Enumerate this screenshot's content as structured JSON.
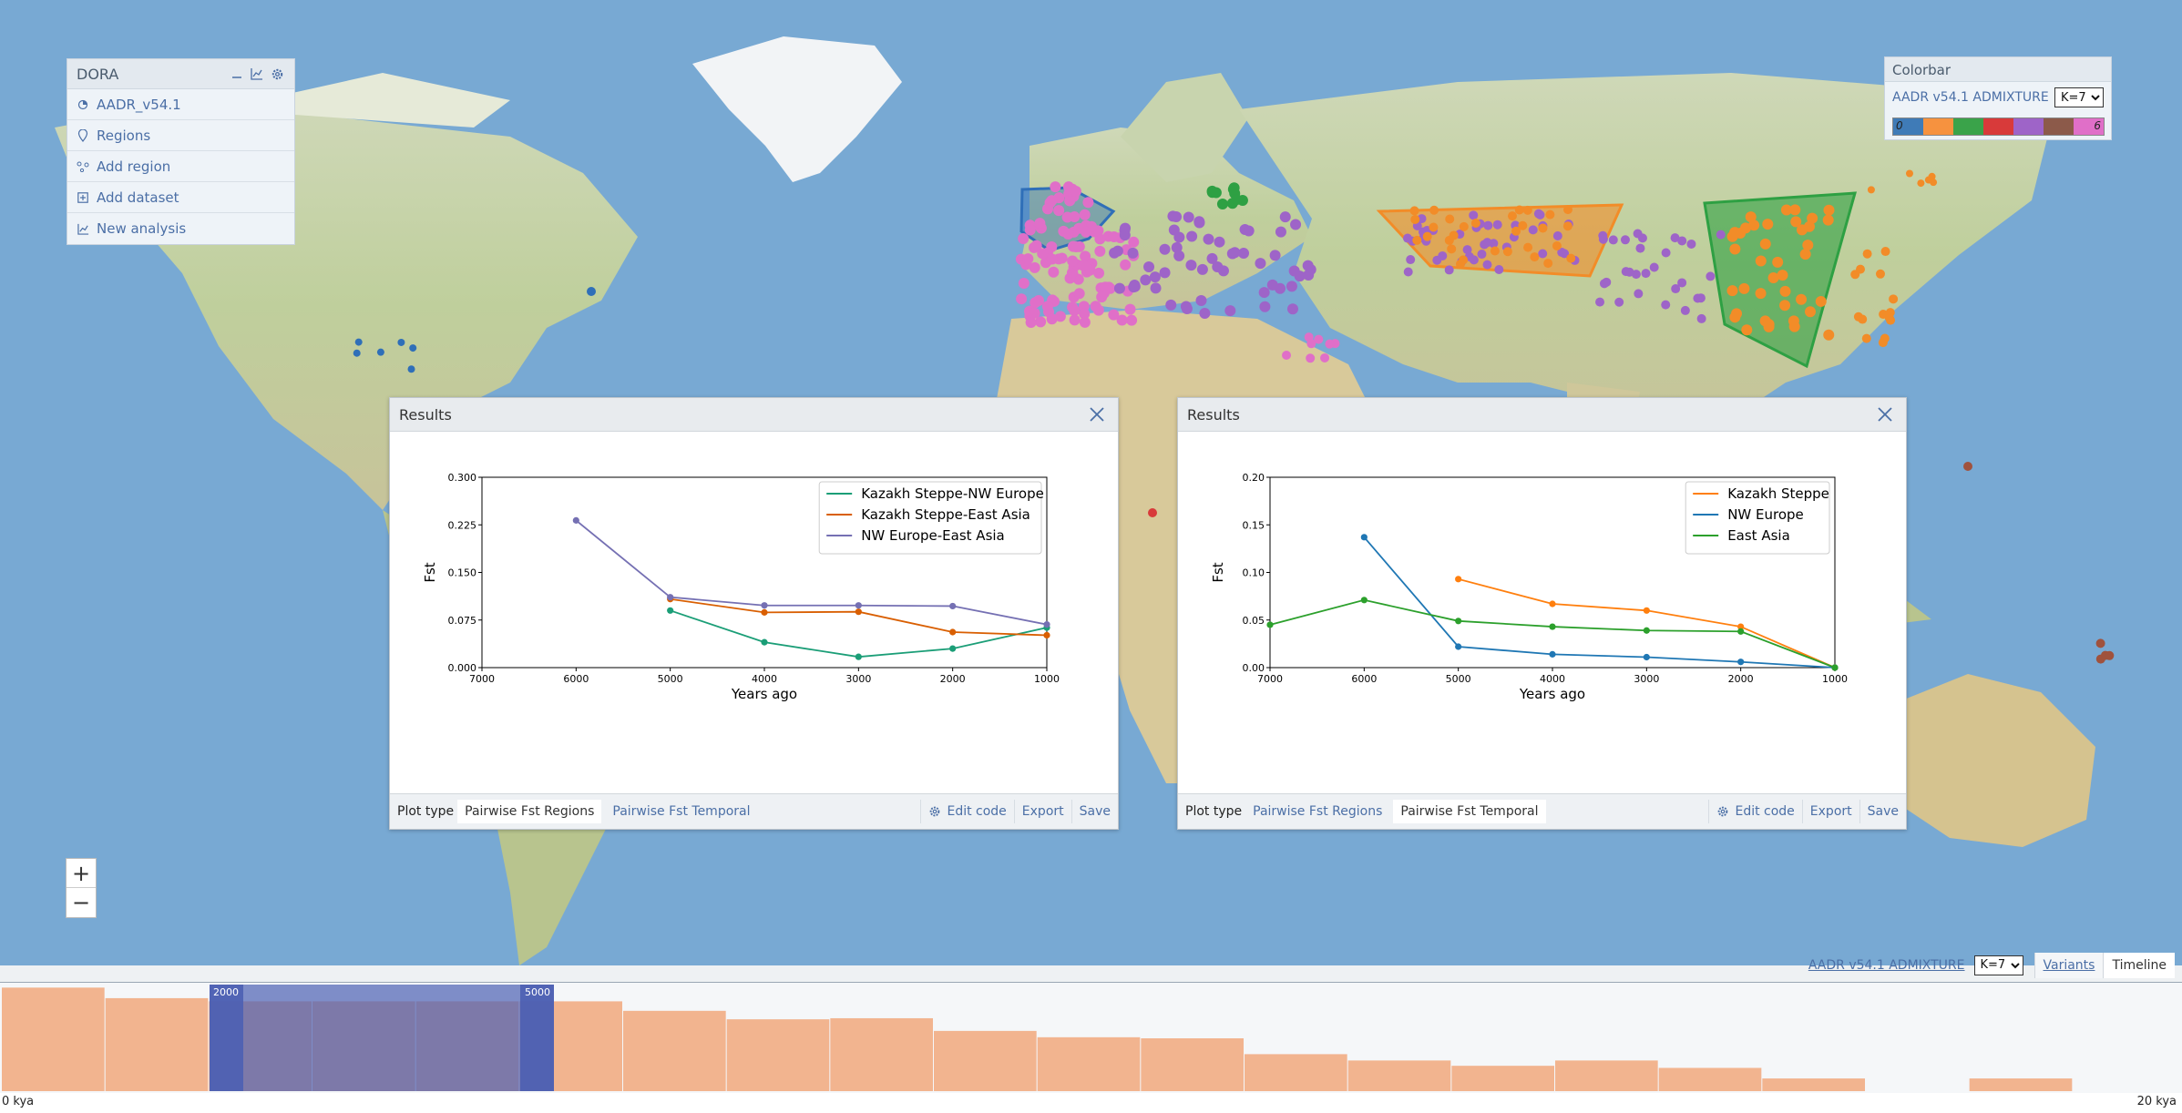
{
  "app": {
    "name": "DORA"
  },
  "dora_panel": {
    "title": "DORA",
    "header_icons": [
      "minimize-icon",
      "chart-icon",
      "settings-icon"
    ],
    "items": [
      {
        "label": "AADR_v54.1",
        "icon": "dataset-icon"
      },
      {
        "label": "Regions",
        "icon": "pin-icon"
      },
      {
        "label": "Add region",
        "icon": "region-icon"
      },
      {
        "label": "Add dataset",
        "icon": "plus-square-icon"
      },
      {
        "label": "New analysis",
        "icon": "chart-icon"
      }
    ]
  },
  "colorbar": {
    "title": "Colorbar",
    "dataset_label": "AADR v54.1 ADMIXTURE",
    "k_value": "K=7",
    "start_label": "0",
    "end_label": "6",
    "colors": [
      "#3f7bb7",
      "#f6923f",
      "#3aa34a",
      "#d83a3a",
      "#9e64c8",
      "#8c5a4a",
      "#e06fc8"
    ]
  },
  "map_layers": {
    "regions": [
      {
        "name": "NW Europe",
        "color": "#2f6fb8"
      },
      {
        "name": "Kazakh Steppe",
        "color": "#f28c28"
      },
      {
        "name": "East Asia",
        "color": "#2ea043"
      }
    ]
  },
  "zoom": {
    "in_label": "+",
    "out_label": "−"
  },
  "results": [
    {
      "title": "Results",
      "plot_type_label": "Plot type",
      "options": [
        "Pairwise Fst Regions",
        "Pairwise Fst Temporal"
      ],
      "selected": 0,
      "edit_code_label": "Edit code",
      "export_label": "Export",
      "save_label": "Save"
    },
    {
      "title": "Results",
      "plot_type_label": "Plot type",
      "options": [
        "Pairwise Fst Regions",
        "Pairwise Fst Temporal"
      ],
      "selected": 1,
      "edit_code_label": "Edit code",
      "export_label": "Export",
      "save_label": "Save"
    }
  ],
  "chart_data": [
    {
      "type": "line",
      "xlabel": "Years ago",
      "ylabel": "Fst",
      "xlim": [
        7000,
        1000
      ],
      "ylim": [
        0,
        0.3
      ],
      "xticks": [
        7000,
        6000,
        5000,
        4000,
        3000,
        2000,
        1000
      ],
      "yticks": [
        "0.000",
        "0.075",
        "0.150",
        "0.225",
        "0.300"
      ],
      "legend": "top-right",
      "series": [
        {
          "name": "Kazakh Steppe-NW Europe",
          "color": "#1b9e77",
          "x": [
            5000,
            4000,
            3000,
            2000,
            1000
          ],
          "y": [
            0.09,
            0.04,
            0.017,
            0.03,
            0.063
          ]
        },
        {
          "name": "Kazakh Steppe-East Asia",
          "color": "#d95f02",
          "x": [
            5000,
            4000,
            3000,
            2000,
            1000
          ],
          "y": [
            0.108,
            0.087,
            0.088,
            0.056,
            0.051
          ]
        },
        {
          "name": "NW Europe-East Asia",
          "color": "#7570b3",
          "x": [
            6000,
            5000,
            4000,
            3000,
            2000,
            1000
          ],
          "y": [
            0.232,
            0.111,
            0.098,
            0.098,
            0.097,
            0.068
          ]
        }
      ]
    },
    {
      "type": "line",
      "xlabel": "Years ago",
      "ylabel": "Fst",
      "xlim": [
        7000,
        1000
      ],
      "ylim": [
        0,
        0.2
      ],
      "xticks": [
        7000,
        6000,
        5000,
        4000,
        3000,
        2000,
        1000
      ],
      "yticks": [
        "0.00",
        "0.05",
        "0.10",
        "0.15",
        "0.20"
      ],
      "legend": "top-right",
      "series": [
        {
          "name": "Kazakh Steppe",
          "color": "#ff7f0e",
          "x": [
            5000,
            4000,
            3000,
            2000,
            1000
          ],
          "y": [
            0.093,
            0.067,
            0.06,
            0.043,
            0.0
          ]
        },
        {
          "name": "NW Europe",
          "color": "#1f77b4",
          "x": [
            6000,
            5000,
            4000,
            3000,
            2000,
            1000
          ],
          "y": [
            0.137,
            0.022,
            0.014,
            0.011,
            0.006,
            0.0
          ]
        },
        {
          "name": "East Asia",
          "color": "#2ca02c",
          "x": [
            7000,
            6000,
            5000,
            4000,
            3000,
            2000,
            1000
          ],
          "y": [
            0.045,
            0.071,
            0.049,
            0.043,
            0.039,
            0.038,
            0.0
          ]
        }
      ]
    }
  ],
  "bottom_tabs": {
    "dataset_label": "AADR v54.1 ADMIXTURE",
    "k_value": "K=7",
    "tabs": [
      "Variants",
      "Timeline"
    ],
    "selected": 1
  },
  "timeline": {
    "start_label": "0 kya",
    "end_label": "20 kya",
    "brush_start": "2000",
    "brush_end": "5000",
    "bar_color": "#f2b48f",
    "bars": [
      0.98,
      0.88,
      0.85,
      0.85,
      0.85,
      0.85,
      0.76,
      0.68,
      0.69,
      0.57,
      0.51,
      0.5,
      0.35,
      0.29,
      0.24,
      0.29,
      0.22,
      0.12,
      0.0,
      0.12,
      0.0
    ]
  }
}
